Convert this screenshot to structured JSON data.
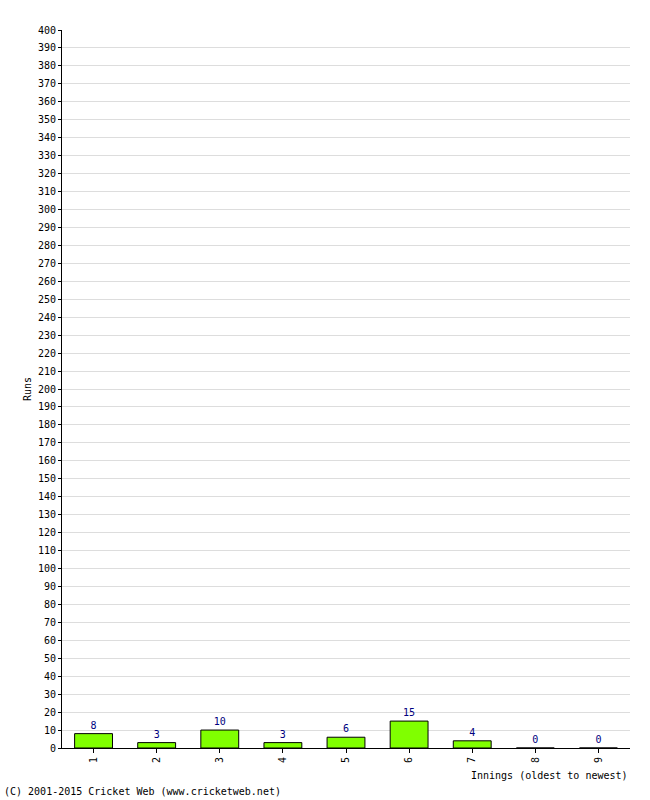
{
  "chart_data": {
    "type": "bar",
    "categories": [
      "1",
      "2",
      "3",
      "4",
      "5",
      "6",
      "7",
      "8",
      "9"
    ],
    "values": [
      8,
      3,
      10,
      3,
      6,
      15,
      4,
      0,
      0
    ],
    "color": "#80ff00",
    "xlabel": "Innings (oldest to newest)",
    "ylabel": "Runs",
    "ylim": [
      0,
      400
    ],
    "yticks": [
      0,
      10,
      20,
      30,
      40,
      50,
      60,
      70,
      80,
      90,
      100,
      110,
      120,
      130,
      140,
      150,
      160,
      170,
      180,
      190,
      200,
      210,
      220,
      230,
      240,
      250,
      260,
      270,
      280,
      290,
      300,
      310,
      320,
      330,
      340,
      350,
      360,
      370,
      380,
      390,
      400
    ],
    "grid": true,
    "data_labels": true,
    "annotations": [
      "(C) 2001-2015 Cricket Web (www.cricketweb.net)"
    ]
  }
}
